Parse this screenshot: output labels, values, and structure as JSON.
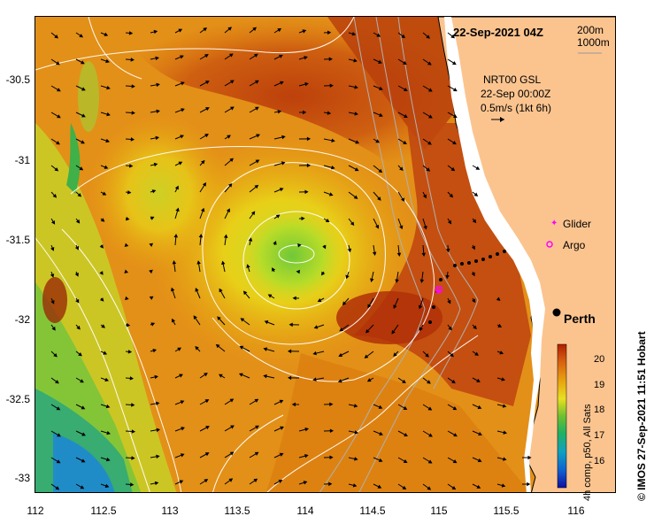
{
  "map": {
    "title": "22-Sep-2021 04Z",
    "depth_labels": [
      "200m",
      "1000m"
    ],
    "current_source": "NRT00 GSL",
    "current_time": "22-Sep 00:00Z",
    "current_scale": "0.5m/s (1kt 6h)",
    "legend": {
      "glider": "Glider",
      "argo": "Argo"
    },
    "city": "Perth",
    "colorbar_ticks": [
      "20",
      "19",
      "18",
      "17",
      "16"
    ],
    "colorbar_caption": "4h comp, p50, All Sats",
    "credit": "IMOS 27-Sep-2021 11:51 Hobart",
    "credit_symbol": "©",
    "lat_ticks": [
      "-30.5",
      "-31",
      "-31.5",
      "-32",
      "-32.5",
      "-33"
    ],
    "lon_ticks": [
      "112",
      "112.5",
      "113",
      "113.5",
      "114",
      "114.5",
      "115",
      "115.5",
      "116"
    ],
    "colors": {
      "land": "#fbc48f",
      "warm": "#c84a0a",
      "mid": "#e08a10",
      "cool": "#e8e020",
      "cold": "#40b040",
      "coldest": "#1a7fd0",
      "marker": "#ff00ff"
    }
  }
}
